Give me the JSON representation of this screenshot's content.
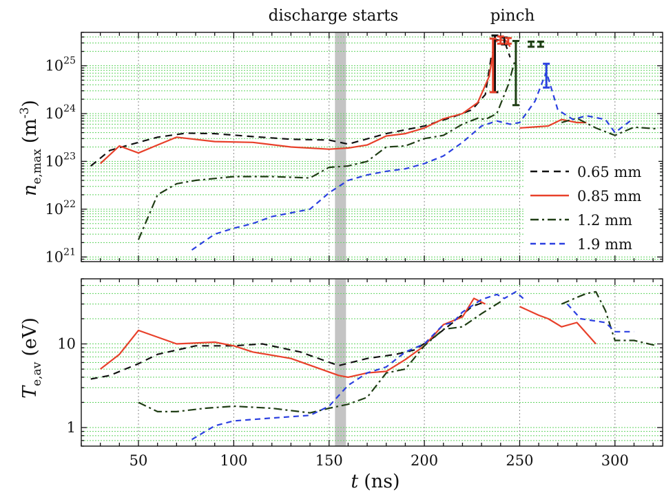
{
  "annotations": {
    "discharge": "discharge starts",
    "pinch": "pinch"
  },
  "xaxis": {
    "label_var": "t",
    "label_unit": "(ns)",
    "ticks": [
      50,
      100,
      150,
      200,
      250,
      300
    ],
    "range": [
      20,
      325
    ]
  },
  "discharge_start_ns": 156,
  "colors": {
    "0.65 mm": "#111111",
    "0.85 mm": "#e8402a",
    "1.2 mm": "#1f3d14",
    "1.9 mm": "#2a3fe0",
    "band": "#c4c4c4",
    "grid_minor": "#5fd35f"
  },
  "chart_data": [
    {
      "type": "line",
      "ylabel_main": "n",
      "ylabel_sub": "e,max",
      "ylabel_unit": "(m",
      "ylabel_exp": "-3",
      "ylabel_close": ")",
      "yscale": "log",
      "ylim": [
        8e+20,
        5e+25
      ],
      "yticks": [
        {
          "value": 1e+21,
          "base": "10",
          "exp": "21"
        },
        {
          "value": 1e+22,
          "base": "10",
          "exp": "22"
        },
        {
          "value": 1e+23,
          "base": "10",
          "exp": "23"
        },
        {
          "value": 1e+24,
          "base": "10",
          "exp": "24"
        },
        {
          "value": 1e+25,
          "base": "10",
          "exp": "25"
        }
      ],
      "legend_position": "right",
      "series": [
        {
          "name": "0.65 mm",
          "dash": "10,7",
          "x": [
            25,
            35,
            50,
            60,
            75,
            90,
            110,
            130,
            150,
            160,
            180,
            200,
            215,
            225,
            232,
            235,
            238,
            242,
            245
          ],
          "y": [
            8e+22,
            1.7e+23,
            2.5e+23,
            3.2e+23,
            3.9e+23,
            3.8e+23,
            3.3e+23,
            2.9e+23,
            2.8e+23,
            2.3e+23,
            3.8e+23,
            5.5e+23,
            8.5e+23,
            1.2e+24,
            2.5e+24,
            1.5e+25,
            3.5e+25,
            3.3e+25,
            1.5e+25
          ]
        },
        {
          "name": "0.85 mm",
          "dash": "",
          "x": [
            30,
            40,
            50,
            60,
            70,
            90,
            110,
            130,
            150,
            160,
            170,
            180,
            190,
            200,
            210,
            220,
            228,
            234,
            237,
            240,
            243,
            245
          ],
          "y": [
            9e+22,
            2.1e+23,
            1.5e+23,
            2.2e+23,
            3.2e+23,
            2.6e+23,
            2.5e+23,
            2e+23,
            1.8e+23,
            1.9e+23,
            2.2e+23,
            3.4e+23,
            3.8e+23,
            5e+23,
            7.8e+23,
            1e+24,
            1.7e+24,
            6e+24,
            3.2e+25,
            3.5e+25,
            3.3e+25,
            2.5e+25
          ]
        },
        {
          "name": "0.85 mm",
          "dash": "",
          "x": [
            250,
            265,
            272,
            280,
            285
          ],
          "y": [
            5e+23,
            5.5e+23,
            7.5e+23,
            6.5e+23,
            6.5e+23
          ]
        },
        {
          "name": "1.2 mm",
          "dash": "12,5,3,5",
          "x": [
            50,
            60,
            70,
            80,
            100,
            120,
            140,
            150,
            160,
            170,
            180,
            190,
            200,
            210,
            220,
            228,
            232,
            238,
            244,
            248
          ],
          "y": [
            2.3e+21,
            2e+22,
            3.4e+22,
            4e+22,
            4.8e+22,
            4.8e+22,
            4.5e+22,
            7.5e+22,
            8e+22,
            1e+23,
            2e+23,
            2.1e+23,
            3e+23,
            3.5e+23,
            6e+23,
            8e+23,
            7.5e+23,
            1e+24,
            4e+24,
            1.5e+25
          ]
        },
        {
          "name": "1.2 mm",
          "dash": "12,5,3,5",
          "x": [
            272,
            280,
            290,
            300,
            310,
            322
          ],
          "y": [
            6.5e+23,
            8e+23,
            5e+23,
            3.5e+23,
            5.2e+23,
            4.8e+23
          ]
        },
        {
          "name": "1.9 mm",
          "dash": "8,6",
          "x": [
            78,
            90,
            100,
            110,
            120,
            140,
            150,
            160,
            170,
            180,
            190,
            200,
            210,
            220,
            230,
            238,
            245,
            250,
            258,
            264,
            270,
            278,
            285,
            295,
            300,
            308
          ],
          "y": [
            1.4e+21,
            3e+21,
            4e+21,
            5e+21,
            7e+21,
            1e+22,
            2.2e+22,
            4e+22,
            5.2e+22,
            6.2e+22,
            7e+22,
            9e+22,
            1.3e+23,
            2.5e+23,
            5.5e+23,
            7e+23,
            6e+23,
            6.5e+23,
            1.8e+24,
            7.5e+24,
            1.2e+24,
            7.5e+23,
            9e+23,
            7.5e+23,
            4e+23,
            7e+23
          ]
        }
      ],
      "errorbars": [
        {
          "series": "0.65 mm",
          "points": [
            [
              237,
              3.5e+25,
              2.8e+24,
              4.3e+25
            ],
            [
              242,
              3.3e+25,
              2.8e+25,
              3.9e+25
            ]
          ]
        },
        {
          "series": "0.85 mm",
          "points": [
            [
              240,
              3.5e+25,
              2.9e+25,
              4.1e+25
            ],
            [
              244,
              3.3e+25,
              2.9e+25,
              3.8e+25
            ],
            [
              236,
              3.2e+25,
              2.8e+24,
              3.7e+25
            ]
          ]
        },
        {
          "series": "1.2 mm",
          "points": [
            [
              248,
              3e+25,
              1.5e+24,
              3.3e+25
            ],
            [
              256,
              2.8e+25,
              2.5e+25,
              3.2e+25
            ],
            [
              261,
              2.8e+25,
              2.5e+25,
              3.2e+25
            ]
          ]
        },
        {
          "series": "1.9 mm",
          "points": [
            [
              264,
              7.5e+24,
              3.5e+24,
              1.1e+25
            ]
          ]
        }
      ]
    },
    {
      "type": "line",
      "ylabel_main": "T",
      "ylabel_sub": "e,av",
      "ylabel_unit": "(eV)",
      "yscale": "log",
      "ylim": [
        0.6,
        60
      ],
      "yticks": [
        {
          "value": 1,
          "base": "1",
          "exp": ""
        },
        {
          "value": 10,
          "base": "10",
          "exp": ""
        }
      ],
      "series": [
        {
          "name": "0.65 mm",
          "dash": "10,7",
          "x": [
            25,
            35,
            50,
            60,
            80,
            100,
            115,
            135,
            155,
            170,
            185,
            195,
            205,
            215,
            225,
            232
          ],
          "y": [
            3.8,
            4.2,
            5.8,
            7.5,
            9.5,
            9.5,
            10,
            8,
            5.5,
            6.7,
            7.5,
            8.5,
            12,
            18,
            28,
            32
          ]
        },
        {
          "name": "0.85 mm",
          "dash": "",
          "x": [
            30,
            40,
            50,
            70,
            90,
            100,
            110,
            130,
            155,
            160,
            170,
            180,
            190,
            200,
            210,
            220,
            226,
            232
          ],
          "y": [
            5,
            7.5,
            14.5,
            10,
            10.5,
            9.5,
            8,
            6.7,
            4.2,
            4,
            4.5,
            4.7,
            6.5,
            9.5,
            17,
            21,
            35,
            30
          ]
        },
        {
          "name": "0.85 mm",
          "dash": "",
          "x": [
            250,
            260,
            265,
            272,
            280,
            290
          ],
          "y": [
            28,
            22,
            20,
            16,
            18,
            10
          ]
        },
        {
          "name": "1.2 mm",
          "dash": "12,5,3,5",
          "x": [
            50,
            60,
            70,
            85,
            100,
            120,
            140,
            150,
            160,
            170,
            180,
            190,
            200,
            210,
            220,
            230,
            240
          ],
          "y": [
            2,
            1.55,
            1.55,
            1.7,
            1.8,
            1.7,
            1.5,
            1.7,
            1.9,
            2.3,
            4.5,
            5,
            9.5,
            15,
            16,
            23,
            32
          ]
        },
        {
          "name": "1.2 mm",
          "dash": "12,5,3,5",
          "x": [
            272,
            280,
            285,
            290,
            295,
            300,
            310,
            322
          ],
          "y": [
            30,
            36,
            40,
            42,
            25,
            11,
            11,
            9.5
          ]
        },
        {
          "name": "1.9 mm",
          "dash": "8,6",
          "x": [
            78,
            90,
            100,
            120,
            140,
            150,
            160,
            170,
            180,
            190,
            200,
            210,
            215,
            220,
            230,
            238,
            242,
            248,
            253
          ],
          "y": [
            0.72,
            1.05,
            1.2,
            1.3,
            1.4,
            1.8,
            3.2,
            4.5,
            5.3,
            8,
            10,
            17,
            18,
            24,
            34,
            39,
            35,
            42,
            33
          ]
        },
        {
          "name": "1.9 mm",
          "dash": "8,6",
          "x": [
            275,
            282,
            295,
            300,
            310
          ],
          "y": [
            30,
            20,
            18,
            14,
            14
          ]
        }
      ]
    }
  ],
  "legend": [
    {
      "label": "0.65 mm",
      "series": "0.65 mm"
    },
    {
      "label": "0.85 mm",
      "series": "0.85 mm"
    },
    {
      "label": "1.2 mm",
      "series": "1.2 mm"
    },
    {
      "label": "1.9 mm",
      "series": "1.9 mm"
    }
  ]
}
